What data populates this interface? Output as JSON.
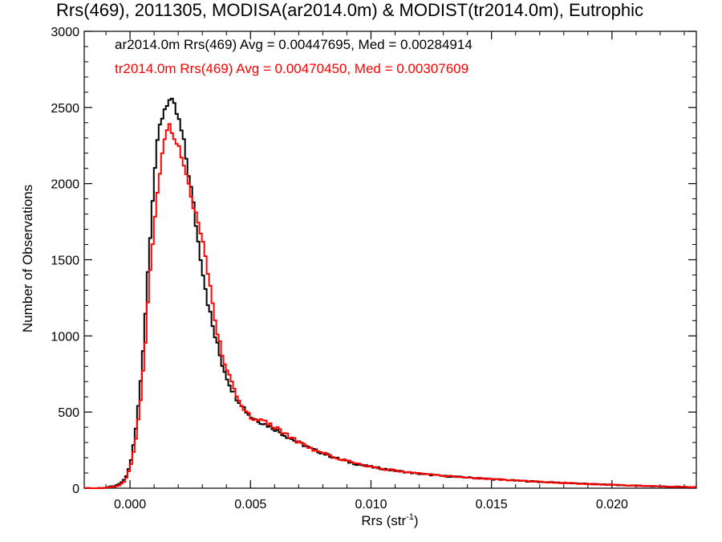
{
  "chart_data": {
    "type": "line",
    "title": "Rrs(469), 2011305, MODISA(ar2014.0m) & MODIST(tr2014.0m), Eutrophic",
    "xlabel": "Rrs (str",
    "xlabel_sup": "-1",
    "xlabel_close": ")",
    "ylabel": "Number of Observations",
    "xlim": [
      -0.0019,
      0.0235
    ],
    "ylim": [
      0,
      3000
    ],
    "x_ticks": [
      0.0,
      0.005,
      0.01,
      0.015,
      0.02
    ],
    "x_tick_labels": [
      "0.000",
      "0.005",
      "0.010",
      "0.015",
      "0.020"
    ],
    "y_ticks": [
      0,
      500,
      1000,
      1500,
      2000,
      2500,
      3000
    ],
    "y_tick_labels": [
      "0",
      "500",
      "1000",
      "1500",
      "2000",
      "2500",
      "3000"
    ],
    "grid": false,
    "legend_position": "top-left",
    "annotations": [
      {
        "text": "ar2014.0m Rrs(469) Avg = 0.00447695, Med = 0.00284914",
        "color": "#000000"
      },
      {
        "text": "tr2014.0m Rrs(469) Avg = 0.00470450, Med = 0.00307609",
        "color": "#ff0000"
      }
    ],
    "series": [
      {
        "color": "#000000",
        "x": [
          -0.0019,
          -0.0015,
          -0.001,
          -0.0005,
          -0.0002,
          0.0,
          0.0002,
          0.0004,
          0.0006,
          0.0008,
          0.001,
          0.0012,
          0.0014,
          0.0016,
          0.0018,
          0.002,
          0.0022,
          0.0024,
          0.0026,
          0.0028,
          0.003,
          0.0032,
          0.0034,
          0.0036,
          0.0038,
          0.004,
          0.0042,
          0.0044,
          0.0046,
          0.0048,
          0.005,
          0.0055,
          0.006,
          0.0065,
          0.007,
          0.0075,
          0.008,
          0.0085,
          0.009,
          0.0095,
          0.01,
          0.011,
          0.012,
          0.013,
          0.014,
          0.015,
          0.016,
          0.017,
          0.018,
          0.019,
          0.02,
          0.021,
          0.022,
          0.023,
          0.0235
        ],
        "y": [
          0,
          0,
          3,
          20,
          60,
          150,
          330,
          620,
          1050,
          1580,
          2050,
          2350,
          2480,
          2550,
          2520,
          2430,
          2300,
          2100,
          1900,
          1650,
          1450,
          1250,
          1080,
          950,
          830,
          740,
          660,
          600,
          560,
          510,
          470,
          430,
          390,
          340,
          300,
          260,
          230,
          200,
          175,
          155,
          140,
          115,
          95,
          80,
          70,
          60,
          50,
          42,
          35,
          28,
          22,
          16,
          12,
          8,
          6
        ]
      },
      {
        "color": "#ff0000",
        "x": [
          -0.0019,
          -0.0015,
          -0.001,
          -0.0005,
          -0.0002,
          0.0,
          0.0002,
          0.0004,
          0.0006,
          0.0008,
          0.001,
          0.0012,
          0.0014,
          0.0016,
          0.0018,
          0.002,
          0.0022,
          0.0024,
          0.0026,
          0.0028,
          0.003,
          0.0032,
          0.0034,
          0.0036,
          0.0038,
          0.004,
          0.0042,
          0.0044,
          0.0046,
          0.0048,
          0.005,
          0.0055,
          0.006,
          0.0065,
          0.007,
          0.0075,
          0.008,
          0.0085,
          0.009,
          0.0095,
          0.01,
          0.011,
          0.012,
          0.013,
          0.014,
          0.015,
          0.016,
          0.017,
          0.018,
          0.019,
          0.02,
          0.021,
          0.022,
          0.023,
          0.0235
        ],
        "y": [
          0,
          0,
          2,
          15,
          50,
          130,
          280,
          520,
          880,
          1350,
          1750,
          2050,
          2250,
          2380,
          2330,
          2250,
          2130,
          2000,
          1850,
          1750,
          1620,
          1450,
          1250,
          1050,
          900,
          780,
          690,
          610,
          560,
          510,
          470,
          440,
          400,
          350,
          300,
          260,
          235,
          205,
          180,
          160,
          140,
          115,
          98,
          82,
          70,
          60,
          50,
          42,
          35,
          28,
          22,
          17,
          12,
          8,
          6
        ]
      }
    ]
  }
}
